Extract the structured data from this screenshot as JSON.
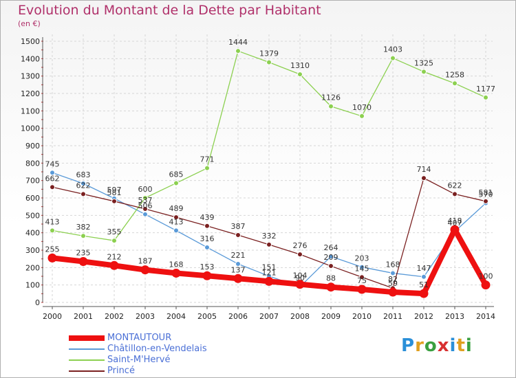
{
  "title": "Evolution du Montant de la Dette par Habitant",
  "subtitle": "(en €)",
  "logo_text": "Proxiti",
  "chart_data": {
    "type": "line",
    "x": [
      "2000",
      "2001",
      "2002",
      "2003",
      "2004",
      "2005",
      "2006",
      "2007",
      "2008",
      "2009",
      "2010",
      "2011",
      "2012",
      "2013",
      "2014"
    ],
    "ylim": [
      0,
      1500
    ],
    "yticks": [
      0,
      100,
      200,
      300,
      400,
      500,
      600,
      700,
      800,
      900,
      1000,
      1100,
      1200,
      1300,
      1400,
      1500
    ],
    "grid": true,
    "legend_position": "bottom-left",
    "series": [
      {
        "name": "Châtillon-en-Vendelais",
        "color": "#5a9ad8",
        "values": [
          745,
          683,
          597,
          506,
          413,
          316,
          221,
          151,
          90,
          264,
          203,
          168,
          147,
          407,
          570
        ],
        "labels": [
          "745",
          "683",
          "597",
          "506",
          "413",
          "316",
          "221",
          "151",
          "90",
          "264",
          "203",
          "168",
          "147",
          "407",
          "570"
        ]
      },
      {
        "name": "Saint-M'Hervé",
        "color": "#8cd050",
        "values": [
          413,
          382,
          355,
          600,
          685,
          771,
          1444,
          1379,
          1310,
          1126,
          1070,
          1403,
          1325,
          1258,
          1177
        ],
        "labels": [
          "413",
          "382",
          "355",
          "600",
          "685",
          "771",
          "1444",
          "1379",
          "1310",
          "1126",
          "1070",
          "1403",
          "1325",
          "1258",
          "1177"
        ]
      },
      {
        "name": "Princé",
        "color": "#7a2020",
        "values": [
          662,
          622,
          581,
          537,
          489,
          439,
          387,
          332,
          276,
          209,
          145,
          82,
          714,
          622,
          581
        ],
        "labels": [
          "662",
          "622",
          "581",
          "537",
          "489",
          "439",
          "387",
          "332",
          "276",
          "209",
          "145",
          "82",
          "714",
          "622",
          "581"
        ]
      },
      {
        "name": "MONTAUTOUR",
        "color": "#ee1010",
        "values": [
          255,
          235,
          212,
          187,
          168,
          153,
          137,
          121,
          104,
          88,
          75,
          59,
          51,
          418,
          100
        ],
        "labels": [
          "255",
          "235",
          "212",
          "187",
          "168",
          "153",
          "137",
          "121",
          "104",
          "88",
          "75",
          "59",
          "51",
          "418",
          "100"
        ]
      }
    ],
    "legend_order": [
      "MONTAUTOUR",
      "Châtillon-en-Vendelais",
      "Saint-M'Hervé",
      "Princé"
    ]
  }
}
